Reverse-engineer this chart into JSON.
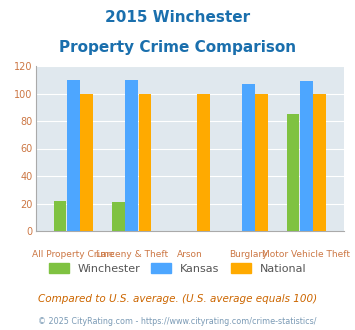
{
  "title_line1": "2015 Winchester",
  "title_line2": "Property Crime Comparison",
  "categories": [
    "All Property Crime",
    "Larceny & Theft",
    "Arson",
    "Burglary",
    "Motor Vehicle Theft"
  ],
  "top_labels": [
    "",
    "Larceny & Theft",
    "Arson",
    "Burglary",
    ""
  ],
  "bot_labels": [
    "All Property Crime",
    "",
    "",
    "",
    "Motor Vehicle Theft"
  ],
  "winchester": [
    22,
    21,
    null,
    null,
    85
  ],
  "kansas": [
    110,
    110,
    null,
    107,
    109
  ],
  "national": [
    100,
    100,
    100,
    100,
    100
  ],
  "color_winchester": "#7fc241",
  "color_kansas": "#4da6ff",
  "color_national": "#ffaa00",
  "color_bg": "#e0e8ee",
  "ylim": [
    0,
    120
  ],
  "yticks": [
    0,
    20,
    40,
    60,
    80,
    100,
    120
  ],
  "title_color": "#1a6fad",
  "axis_label_color": "#cc7744",
  "legend_label_color": "#555555",
  "footnote_color": "#cc6600",
  "copyright_color": "#7a9ab5"
}
